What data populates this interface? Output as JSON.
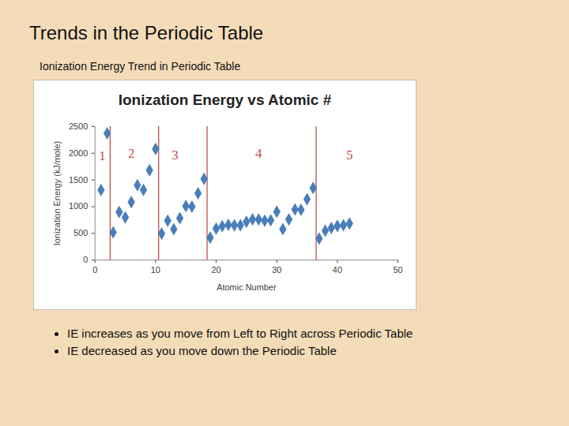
{
  "slide": {
    "title": "Trends in the Periodic Table",
    "subtitle": "Ionization Energy Trend in Periodic Table",
    "bullets": [
      "IE increases as you move from Left to Right across Periodic Table",
      "IE decreased as you move down the Periodic Table"
    ]
  },
  "chart_data": {
    "type": "scatter",
    "title": "Ionization Energy vs Atomic #",
    "xlabel": "Atomic Number",
    "ylabel": "Ionization Energy (kJ/mole)",
    "x": [
      1,
      2,
      3,
      4,
      5,
      6,
      7,
      8,
      9,
      10,
      11,
      12,
      13,
      14,
      15,
      16,
      17,
      18,
      19,
      20,
      21,
      22,
      23,
      24,
      25,
      26,
      27,
      28,
      29,
      30,
      31,
      32,
      33,
      34,
      35,
      36,
      37,
      38,
      39,
      40,
      41,
      42
    ],
    "values": [
      1312,
      2372,
      520,
      900,
      800,
      1086,
      1402,
      1314,
      1681,
      2081,
      496,
      738,
      578,
      786,
      1012,
      1000,
      1251,
      1521,
      419,
      590,
      633,
      659,
      651,
      653,
      717,
      762,
      760,
      737,
      745,
      906,
      579,
      762,
      947,
      941,
      1140,
      1351,
      403,
      550,
      600,
      640,
      652,
      684
    ],
    "color": "#4a7ebb",
    "marker": "diamond",
    "grid": false,
    "xlim": [
      0,
      50
    ],
    "xticks": [
      0,
      10,
      20,
      30,
      40,
      50
    ],
    "ylim": [
      0,
      2500
    ],
    "yticks": [
      0,
      500,
      1000,
      1500,
      2000,
      2500
    ],
    "dividers": [
      2.5,
      10.5,
      18.5,
      36.5
    ],
    "annotations": [
      {
        "text": "1",
        "x": 1.2,
        "y": 1950
      },
      {
        "text": "2",
        "x": 6,
        "y": 1990
      },
      {
        "text": "3",
        "x": 13.2,
        "y": 1960
      },
      {
        "text": "4",
        "x": 27,
        "y": 1990
      },
      {
        "text": "5",
        "x": 42,
        "y": 1960
      }
    ]
  }
}
